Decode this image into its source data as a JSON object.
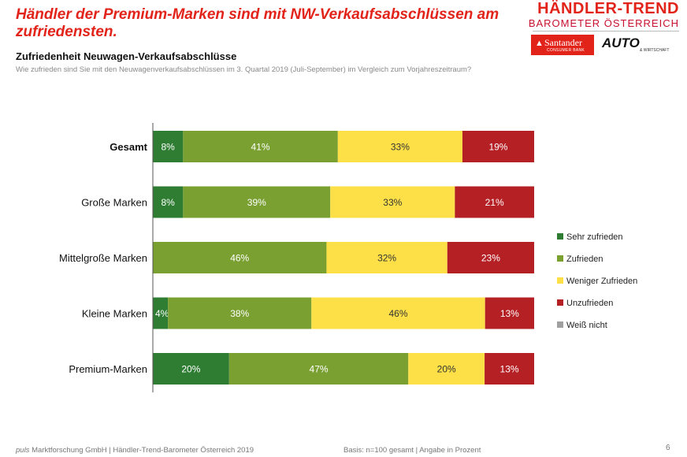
{
  "headline": "Händler der Premium-Marken sind mit NW-Verkaufsabschlüssen am zufriedensten.",
  "logo": {
    "title": "HÄNDLER-TREND",
    "subtitle": "BAROMETER ÖSTERREICH",
    "santander": "Santander",
    "santander_sub": "CONSUMER BANK",
    "auto": "AUTO",
    "auto_sub": "& WIRTSCHAFT"
  },
  "subtitle": "Zufriedenheit Neuwagen-Verkaufsabschlüsse",
  "question": "Wie zufrieden sind Sie mit den Neuwagenverkaufsabschlüssen im 3. Quartal 2019 (Juli-September) im Vergleich zum Vorjahreszeitraum?",
  "footer": {
    "source_italic": "puls",
    "source": " Marktforschung GmbH | Händler-Trend-Barometer Österreich 2019",
    "basis": "Basis: n=100 gesamt | Angabe in Prozent",
    "page": "6"
  },
  "chart_data": {
    "type": "bar",
    "orientation": "horizontal",
    "stacked": true,
    "categories": [
      "Gesamt",
      "Große Marken",
      "Mittelgroße Marken",
      "Kleine Marken",
      "Premium-Marken"
    ],
    "highlight_category": "Gesamt",
    "series": [
      {
        "name": "Sehr zufrieden",
        "color": "#2e7d32",
        "values": [
          8,
          8,
          0,
          4,
          20
        ]
      },
      {
        "name": "Zufrieden",
        "color": "#7aa032",
        "values": [
          41,
          39,
          46,
          38,
          47
        ]
      },
      {
        "name": "Weniger Zufrieden",
        "color": "#fde047",
        "values": [
          33,
          33,
          32,
          46,
          20
        ]
      },
      {
        "name": "Unzufrieden",
        "color": "#b52025",
        "values": [
          19,
          21,
          23,
          13,
          13
        ]
      },
      {
        "name": "Weiß nicht",
        "color": "#a0a0a0",
        "values": [
          0,
          0,
          0,
          0,
          0
        ]
      }
    ],
    "value_suffix": "%",
    "legend_position": "right",
    "grid": false
  }
}
